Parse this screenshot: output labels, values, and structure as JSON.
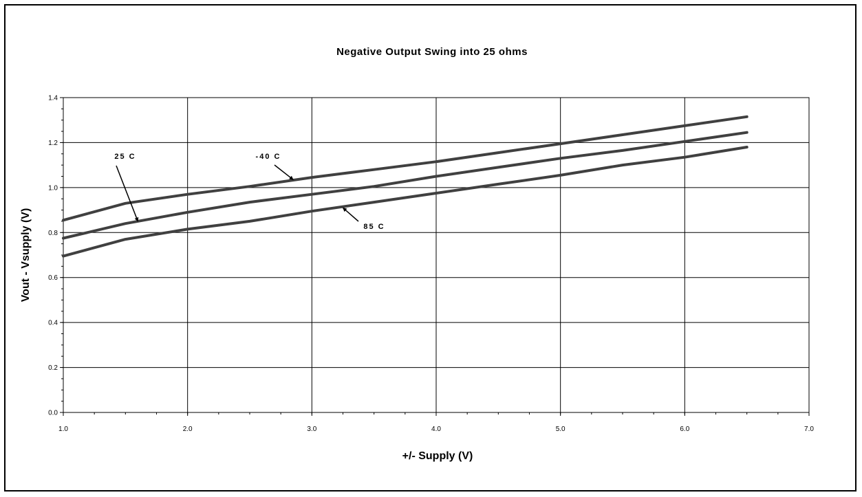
{
  "chart_data": {
    "type": "line",
    "title": "Negative Output Swing into 25 ohms",
    "xlabel": "+/- Supply (V)",
    "ylabel": "Vout - Vsupply (V)",
    "xlim": [
      1.0,
      7.0
    ],
    "ylim": [
      0.0,
      1.4
    ],
    "x_ticks": [
      "1.0",
      "2.0",
      "3.0",
      "4.0",
      "5.0",
      "6.0",
      "7.0"
    ],
    "y_ticks": [
      "0.0",
      "0.2",
      "0.4",
      "0.6",
      "0.8",
      "1.0",
      "1.2",
      "1.4"
    ],
    "grid": true,
    "line_color": "#404040",
    "series": [
      {
        "name": "-40 C",
        "x": [
          1.0,
          1.5,
          2.0,
          2.5,
          3.0,
          3.5,
          4.0,
          4.5,
          5.0,
          5.5,
          6.0,
          6.5
        ],
        "y": [
          0.855,
          0.93,
          0.97,
          1.005,
          1.045,
          1.08,
          1.115,
          1.155,
          1.195,
          1.235,
          1.275,
          1.315
        ]
      },
      {
        "name": "25 C",
        "x": [
          1.0,
          1.5,
          2.0,
          2.5,
          3.0,
          3.5,
          4.0,
          4.5,
          5.0,
          5.5,
          6.0,
          6.5
        ],
        "y": [
          0.775,
          0.84,
          0.89,
          0.935,
          0.97,
          1.005,
          1.05,
          1.09,
          1.13,
          1.165,
          1.205,
          1.245
        ]
      },
      {
        "name": "85 C",
        "x": [
          1.0,
          1.5,
          2.0,
          2.5,
          3.0,
          3.5,
          4.0,
          4.5,
          5.0,
          5.5,
          6.0,
          6.5
        ],
        "y": [
          0.695,
          0.77,
          0.815,
          0.85,
          0.895,
          0.935,
          0.975,
          1.015,
          1.055,
          1.1,
          1.135,
          1.18
        ]
      }
    ],
    "annotations": [
      {
        "text": "25 C",
        "series": "25 C",
        "x": 1.6,
        "y": 0.85
      },
      {
        "text": "-40 C",
        "series": "-40 C",
        "x": 2.85,
        "y": 1.035
      },
      {
        "text": "85 C",
        "series": "85 C",
        "x": 3.25,
        "y": 0.91
      }
    ]
  }
}
